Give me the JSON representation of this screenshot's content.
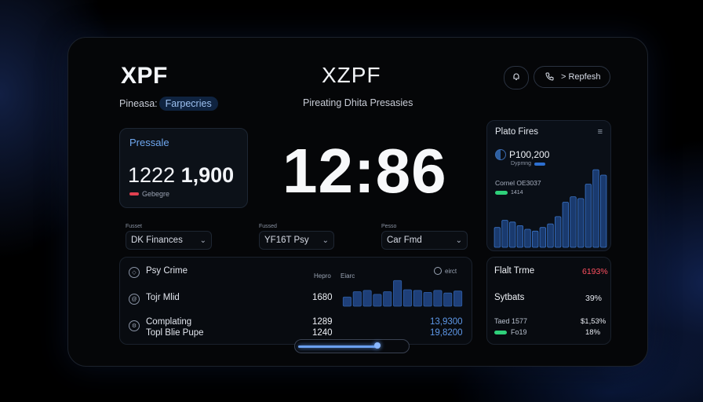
{
  "header": {
    "logo": "XPF",
    "center_title": "XZPF",
    "sub_left_label": "Pineasa:",
    "sub_left_tag": "Farpecries",
    "sub_center": "Pireating Dhita Presasies",
    "round_btn_icon": "bell-icon",
    "pill_btn_label": "> Repfesh",
    "pill_btn_icon": "phone-icon"
  },
  "pressale": {
    "title": "Pressale",
    "value_a": "1222",
    "value_b": "1,900",
    "caption": "Gebegre"
  },
  "clock": "12:86",
  "dropdowns": [
    {
      "label": "Fusset",
      "value": "DK Finances"
    },
    {
      "label": "Fussed",
      "value": "YF16T Psy"
    },
    {
      "label": "Pesso",
      "value": "Car Fmd"
    }
  ],
  "chart_card": {
    "title": "Plato Fires",
    "value": "P100,200",
    "value_sub": "Dypmng",
    "line2": "Cornel OE3037",
    "line3": "1414",
    "chart_data": {
      "type": "bar",
      "values": [
        22,
        30,
        28,
        24,
        20,
        18,
        22,
        26,
        34,
        50,
        56,
        54,
        70,
        86,
        80
      ]
    }
  },
  "table": {
    "col_a": "Hepro",
    "col_b": "Eiarc",
    "col_c": "eirct",
    "rows": [
      {
        "label": "Psy Crime",
        "num": "",
        "blue": ""
      },
      {
        "label": "Tojr Mlid",
        "num": "1680",
        "blue": ""
      },
      {
        "label": "Complating",
        "num": "1289",
        "blue": "13,9300"
      },
      {
        "label": "Topl Blie Pupe",
        "num": "1240",
        "blue": "19,8200"
      }
    ],
    "mini_chart": {
      "type": "bar",
      "values": [
        28,
        44,
        48,
        36,
        44,
        78,
        50,
        48,
        42,
        48,
        40,
        46
      ]
    }
  },
  "progress": 0.73,
  "stats": {
    "rows": [
      {
        "label": "Flalt Trme",
        "value": "6193%",
        "color": "#ff5060"
      },
      {
        "label": "Sytbats",
        "value": "39%",
        "color": "#e6e9f0"
      },
      {
        "label": "Taed 1577",
        "value": "$1,53%",
        "color": "#e6e9f0"
      },
      {
        "label": "Fo19",
        "value": "18%",
        "color": "#e6e9f0"
      }
    ]
  }
}
